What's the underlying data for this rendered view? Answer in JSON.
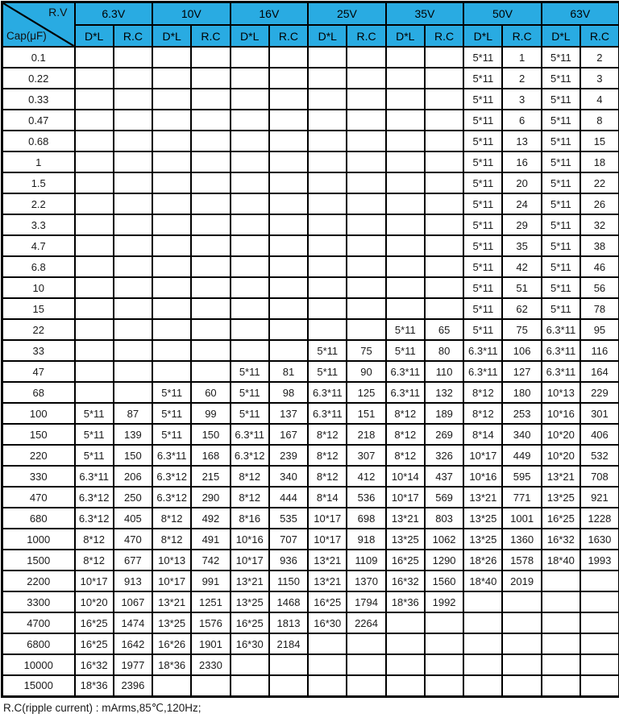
{
  "corner": {
    "top": "R.V",
    "bottom": "Cap(μF)"
  },
  "voltages": [
    "6.3V",
    "10V",
    "16V",
    "25V",
    "35V",
    "50V",
    "63V"
  ],
  "sub_headers": [
    "D*L",
    "R.C"
  ],
  "footer": "R.C(ripple current) : mArms,85℃,120Hz;",
  "colors": {
    "header_bg": "#29ABE2",
    "border": "#000000"
  },
  "chart_data": {
    "type": "table",
    "columns": [
      "Cap(μF)",
      "6.3V D*L",
      "6.3V R.C",
      "10V D*L",
      "10V R.C",
      "16V D*L",
      "16V R.C",
      "25V D*L",
      "25V R.C",
      "35V D*L",
      "35V R.C",
      "50V D*L",
      "50V R.C",
      "63V D*L",
      "63V R.C"
    ],
    "rows": [
      [
        "0.1",
        "",
        "",
        "",
        "",
        "",
        "",
        "",
        "",
        "",
        "",
        "5*11",
        "1",
        "5*11",
        "2"
      ],
      [
        "0.22",
        "",
        "",
        "",
        "",
        "",
        "",
        "",
        "",
        "",
        "",
        "5*11",
        "2",
        "5*11",
        "3"
      ],
      [
        "0.33",
        "",
        "",
        "",
        "",
        "",
        "",
        "",
        "",
        "",
        "",
        "5*11",
        "3",
        "5*11",
        "4"
      ],
      [
        "0.47",
        "",
        "",
        "",
        "",
        "",
        "",
        "",
        "",
        "",
        "",
        "5*11",
        "6",
        "5*11",
        "8"
      ],
      [
        "0.68",
        "",
        "",
        "",
        "",
        "",
        "",
        "",
        "",
        "",
        "",
        "5*11",
        "13",
        "5*11",
        "15"
      ],
      [
        "1",
        "",
        "",
        "",
        "",
        "",
        "",
        "",
        "",
        "",
        "",
        "5*11",
        "16",
        "5*11",
        "18"
      ],
      [
        "1.5",
        "",
        "",
        "",
        "",
        "",
        "",
        "",
        "",
        "",
        "",
        "5*11",
        "20",
        "5*11",
        "22"
      ],
      [
        "2.2",
        "",
        "",
        "",
        "",
        "",
        "",
        "",
        "",
        "",
        "",
        "5*11",
        "24",
        "5*11",
        "26"
      ],
      [
        "3.3",
        "",
        "",
        "",
        "",
        "",
        "",
        "",
        "",
        "",
        "",
        "5*11",
        "29",
        "5*11",
        "32"
      ],
      [
        "4.7",
        "",
        "",
        "",
        "",
        "",
        "",
        "",
        "",
        "",
        "",
        "5*11",
        "35",
        "5*11",
        "38"
      ],
      [
        "6.8",
        "",
        "",
        "",
        "",
        "",
        "",
        "",
        "",
        "",
        "",
        "5*11",
        "42",
        "5*11",
        "46"
      ],
      [
        "10",
        "",
        "",
        "",
        "",
        "",
        "",
        "",
        "",
        "",
        "",
        "5*11",
        "51",
        "5*11",
        "56"
      ],
      [
        "15",
        "",
        "",
        "",
        "",
        "",
        "",
        "",
        "",
        "",
        "",
        "5*11",
        "62",
        "5*11",
        "78"
      ],
      [
        "22",
        "",
        "",
        "",
        "",
        "",
        "",
        "",
        "",
        "5*11",
        "65",
        "5*11",
        "75",
        "6.3*11",
        "95"
      ],
      [
        "33",
        "",
        "",
        "",
        "",
        "",
        "",
        "5*11",
        "75",
        "5*11",
        "80",
        "6.3*11",
        "106",
        "6.3*11",
        "116"
      ],
      [
        "47",
        "",
        "",
        "",
        "",
        "5*11",
        "81",
        "5*11",
        "90",
        "6.3*11",
        "110",
        "6.3*11",
        "127",
        "6.3*11",
        "164"
      ],
      [
        "68",
        "",
        "",
        "5*11",
        "60",
        "5*11",
        "98",
        "6.3*11",
        "125",
        "6.3*11",
        "132",
        "8*12",
        "180",
        "10*13",
        "229"
      ],
      [
        "100",
        "5*11",
        "87",
        "5*11",
        "99",
        "5*11",
        "137",
        "6.3*11",
        "151",
        "8*12",
        "189",
        "8*12",
        "253",
        "10*16",
        "301"
      ],
      [
        "150",
        "5*11",
        "139",
        "5*11",
        "150",
        "6.3*11",
        "167",
        "8*12",
        "218",
        "8*12",
        "269",
        "8*14",
        "340",
        "10*20",
        "406"
      ],
      [
        "220",
        "5*11",
        "150",
        "6.3*11",
        "168",
        "6.3*12",
        "239",
        "8*12",
        "307",
        "8*12",
        "326",
        "10*17",
        "449",
        "10*20",
        "532"
      ],
      [
        "330",
        "6.3*11",
        "206",
        "6.3*12",
        "215",
        "8*12",
        "340",
        "8*12",
        "412",
        "10*14",
        "437",
        "10*16",
        "595",
        "13*21",
        "708"
      ],
      [
        "470",
        "6.3*12",
        "250",
        "6.3*12",
        "290",
        "8*12",
        "444",
        "8*14",
        "536",
        "10*17",
        "569",
        "13*21",
        "771",
        "13*25",
        "921"
      ],
      [
        "680",
        "6.3*12",
        "405",
        "8*12",
        "492",
        "8*16",
        "535",
        "10*17",
        "698",
        "13*21",
        "803",
        "13*25",
        "1001",
        "16*25",
        "1228"
      ],
      [
        "1000",
        "8*12",
        "470",
        "8*12",
        "491",
        "10*16",
        "707",
        "10*17",
        "918",
        "13*25",
        "1062",
        "13*25",
        "1360",
        "16*32",
        "1630"
      ],
      [
        "1500",
        "8*12",
        "677",
        "10*13",
        "742",
        "10*17",
        "936",
        "13*21",
        "1109",
        "16*25",
        "1290",
        "18*26",
        "1578",
        "18*40",
        "1993"
      ],
      [
        "2200",
        "10*17",
        "913",
        "10*17",
        "991",
        "13*21",
        "1150",
        "13*21",
        "1370",
        "16*32",
        "1560",
        "18*40",
        "2019",
        "",
        ""
      ],
      [
        "3300",
        "10*20",
        "1067",
        "13*21",
        "1251",
        "13*25",
        "1468",
        "16*25",
        "1794",
        "18*36",
        "1992",
        "",
        "",
        "",
        ""
      ],
      [
        "4700",
        "16*25",
        "1474",
        "13*25",
        "1576",
        "16*25",
        "1813",
        "16*30",
        "2264",
        "",
        "",
        "",
        "",
        "",
        ""
      ],
      [
        "6800",
        "16*25",
        "1642",
        "16*26",
        "1901",
        "16*30",
        "2184",
        "",
        "",
        "",
        "",
        "",
        "",
        "",
        ""
      ],
      [
        "10000",
        "16*32",
        "1977",
        "18*36",
        "2330",
        "",
        "",
        "",
        "",
        "",
        "",
        "",
        "",
        "",
        ""
      ],
      [
        "15000",
        "18*36",
        "2396",
        "",
        "",
        "",
        "",
        "",
        "",
        "",
        "",
        "",
        "",
        "",
        ""
      ]
    ]
  }
}
